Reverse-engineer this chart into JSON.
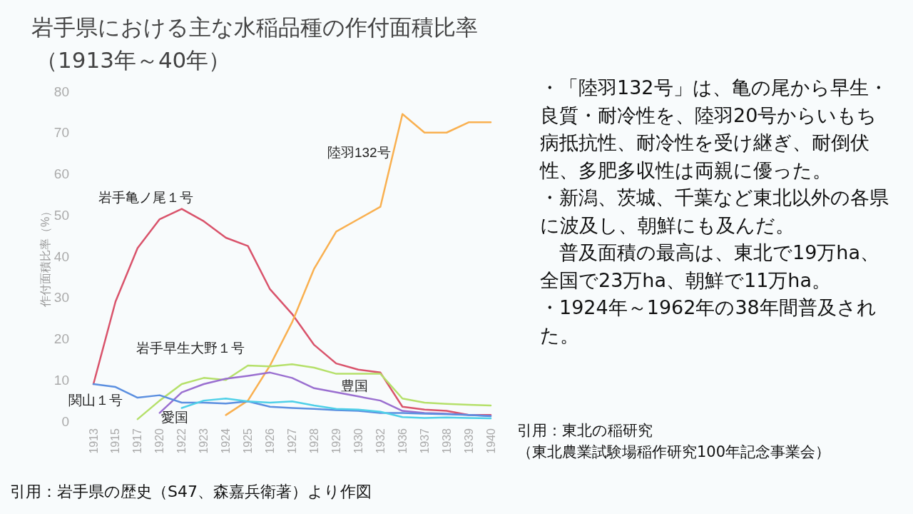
{
  "chart_data": {
    "type": "line",
    "title": "岩手県における主な水稲品種の作付面積比率",
    "subtitle": "（1913年～40年）",
    "ylabel": "作付面積比率（%）",
    "categories": [
      "1913",
      "1915",
      "1917",
      "1920",
      "1922",
      "1923",
      "1924",
      "1925",
      "1926",
      "1927",
      "1928",
      "1929",
      "1930",
      "1932",
      "1936",
      "1937",
      "1938",
      "1939",
      "1940"
    ],
    "ylim": [
      0,
      80
    ],
    "yticks": [
      0,
      10,
      20,
      30,
      40,
      50,
      60,
      70,
      80
    ],
    "grid": false,
    "legend": false,
    "series": [
      {
        "name": "岩手亀ノ尾１号",
        "color": "#d9536b",
        "values": [
          9,
          29,
          42,
          49,
          51.5,
          48.5,
          44.5,
          42.5,
          32,
          26,
          18.5,
          14,
          12.5,
          11.8,
          3.5,
          2.8,
          2.5,
          1.5,
          1.5
        ]
      },
      {
        "name": "陸羽132号",
        "color": "#f9b050",
        "values": [
          null,
          null,
          null,
          null,
          null,
          null,
          1.5,
          5,
          13.5,
          24,
          37,
          46,
          49,
          52,
          74.5,
          70,
          70,
          72.5,
          72.5
        ]
      },
      {
        "name": "岩手早生大野１号",
        "color": "#b5e06a",
        "values": [
          null,
          null,
          0.5,
          5,
          9,
          10.5,
          10,
          13.5,
          13.3,
          13.8,
          13,
          11.5,
          11.5,
          11.5,
          5.5,
          4.5,
          4.2,
          4,
          3.8
        ]
      },
      {
        "name": "豊国",
        "color": "#9a6fd0",
        "values": [
          null,
          null,
          null,
          2,
          7,
          9,
          10.3,
          11,
          11.8,
          10.5,
          8,
          7,
          6,
          5,
          2.5,
          2,
          1.8,
          1.5,
          1.3
        ]
      },
      {
        "name": "関山１号",
        "color": "#5b8fe0",
        "values": [
          9,
          8.3,
          5.7,
          6.3,
          4.5,
          4.5,
          4.3,
          4.8,
          3.5,
          3.2,
          3,
          2.7,
          2.5,
          2,
          2,
          1.8,
          1.7,
          1.5,
          1.2
        ]
      },
      {
        "name": "愛国",
        "color": "#4fd0e8",
        "values": [
          null,
          null,
          null,
          null,
          3.2,
          5,
          5.5,
          4.8,
          4.5,
          4.8,
          3.8,
          3,
          2.8,
          2.3,
          1,
          0.8,
          0.9,
          0.8,
          0.7
        ]
      }
    ],
    "annotations": [
      "・「陸羽132号」は、亀の尾から早生・良質・耐冷性を、陸羽20号からいもち病抵抗性、耐冷性を受け継ぎ、耐倒伏性、多肥多収性は両親に優った。",
      "・新潟、茨城、千葉など東北以外の各県に波及し、朝鮮にも及んだ。",
      "　普及面積の最高は、東北で19万ha、全国で23万ha、朝鮮で11万ha。",
      "・1924年～1962年の38年間普及された。",
      "引用：東北の稲研究",
      "（東北農業試験場稲作研究100年記念事業会）",
      "引用：岩手県の歴史（S47、森嘉兵衛著）より作図"
    ]
  }
}
